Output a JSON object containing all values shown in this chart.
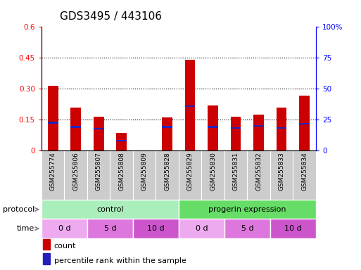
{
  "title": "GDS3495 / 443106",
  "samples": [
    "GSM255774",
    "GSM255806",
    "GSM255807",
    "GSM255808",
    "GSM255809",
    "GSM255828",
    "GSM255829",
    "GSM255830",
    "GSM255831",
    "GSM255832",
    "GSM255833",
    "GSM255834"
  ],
  "count_values": [
    0.315,
    0.21,
    0.165,
    0.085,
    0.0,
    0.16,
    0.44,
    0.22,
    0.165,
    0.175,
    0.21,
    0.265
  ],
  "percentile_values": [
    0.135,
    0.115,
    0.105,
    0.048,
    0.0,
    0.115,
    0.215,
    0.115,
    0.11,
    0.12,
    0.11,
    0.13
  ],
  "ylim_left": [
    0,
    0.6
  ],
  "ylim_right": [
    0,
    100
  ],
  "yticks_left": [
    0,
    0.15,
    0.3,
    0.45,
    0.6
  ],
  "yticks_right": [
    0,
    25,
    50,
    75,
    100
  ],
  "ytick_labels_left": [
    "0",
    "0.15",
    "0.30",
    "0.45",
    "0.6"
  ],
  "ytick_labels_right": [
    "0",
    "25",
    "50",
    "75",
    "100%"
  ],
  "bar_color": "#cc0000",
  "pct_color": "#2222bb",
  "proto_control_color": "#aaeebb",
  "proto_progerin_color": "#66dd66",
  "time_0d_color": "#eeaaee",
  "time_5d_color": "#dd77dd",
  "time_10d_color": "#cc55cc",
  "sample_cell_color": "#cccccc",
  "legend_count_label": "count",
  "legend_pct_label": "percentile rank within the sample",
  "title_fontsize": 11,
  "tick_fontsize": 7.5,
  "label_fontsize": 8
}
